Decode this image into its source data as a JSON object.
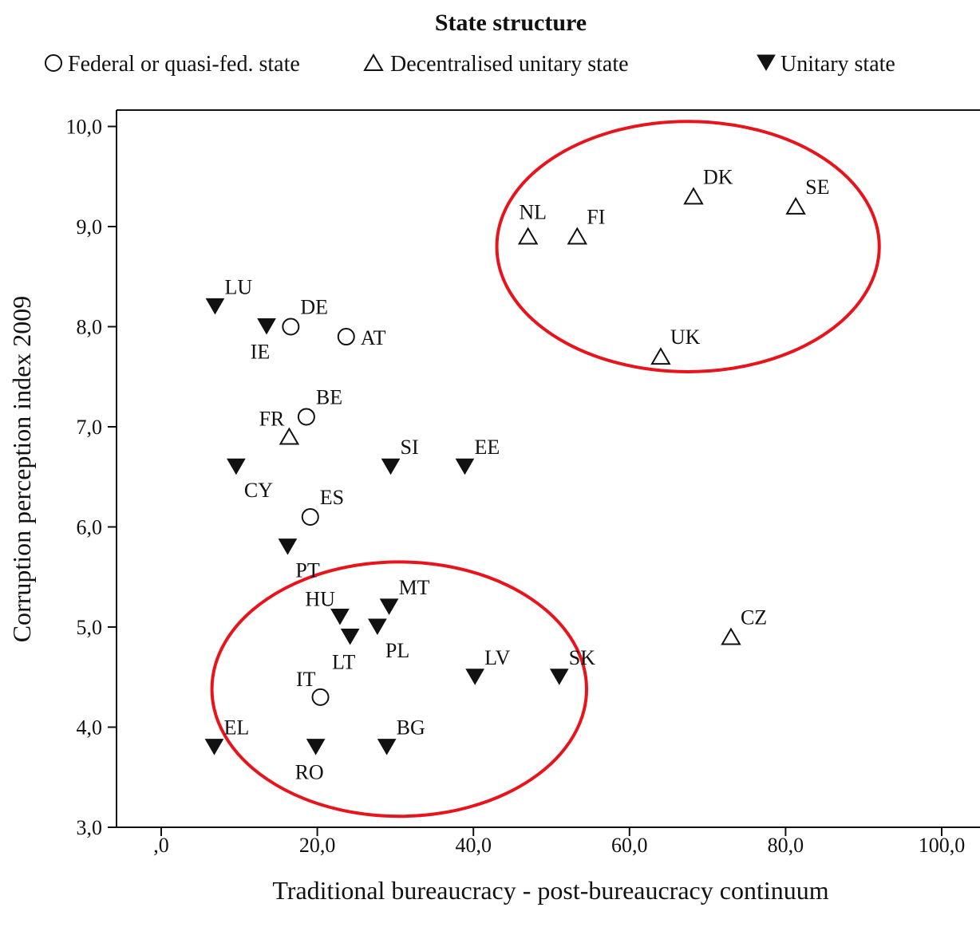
{
  "chart_data": {
    "type": "scatter",
    "title": "State structure",
    "xlabel": "Traditional bureaucracy - post-bureaucracy continuum",
    "ylabel": "Corruption perception index 2009",
    "xlim": [
      -5,
      105
    ],
    "ylim": [
      3,
      10
    ],
    "x_ticks": [
      0,
      20,
      40,
      60,
      80,
      100
    ],
    "x_tick_labels": [
      ",0",
      "20,0",
      "40,0",
      "60,0",
      "80,0",
      "100,0"
    ],
    "y_ticks": [
      3,
      4,
      5,
      6,
      7,
      8,
      9,
      10
    ],
    "y_tick_labels": [
      "3,0",
      "4,0",
      "5,0",
      "6,0",
      "7,0",
      "8,0",
      "9,0",
      "10,0"
    ],
    "grid": false,
    "legend_position": "top",
    "legend": [
      {
        "key": "federal",
        "label": "Federal or quasi-fed. state",
        "marker": "circle-open"
      },
      {
        "key": "decentralised",
        "label": "Decentralised unitary state",
        "marker": "triangle-open"
      },
      {
        "key": "unitary",
        "label": "Unitary state",
        "marker": "triangle-down-filled"
      }
    ],
    "points": [
      {
        "label": "DK",
        "x": 68.2,
        "y": 9.3,
        "group": "decentralised",
        "label_side": "above-right"
      },
      {
        "label": "SE",
        "x": 81.3,
        "y": 9.2,
        "group": "decentralised",
        "label_side": "above-right"
      },
      {
        "label": "NL",
        "x": 47.0,
        "y": 8.9,
        "group": "decentralised",
        "label_side": "above"
      },
      {
        "label": "FI",
        "x": 53.3,
        "y": 8.9,
        "group": "decentralised",
        "label_side": "above-right"
      },
      {
        "label": "UK",
        "x": 64.0,
        "y": 7.7,
        "group": "decentralised",
        "label_side": "above-right"
      },
      {
        "label": "FR",
        "x": 16.4,
        "y": 6.9,
        "group": "decentralised",
        "label_side": "above-left"
      },
      {
        "label": "CZ",
        "x": 73.0,
        "y": 4.9,
        "group": "decentralised",
        "label_side": "above-right"
      },
      {
        "label": "DE",
        "x": 16.6,
        "y": 8.0,
        "group": "federal",
        "label_side": "above-right"
      },
      {
        "label": "AT",
        "x": 23.7,
        "y": 7.9,
        "group": "federal",
        "label_side": "right"
      },
      {
        "label": "BE",
        "x": 18.6,
        "y": 7.1,
        "group": "federal",
        "label_side": "above-right"
      },
      {
        "label": "ES",
        "x": 19.1,
        "y": 6.1,
        "group": "federal",
        "label_side": "above-right"
      },
      {
        "label": "IT",
        "x": 20.4,
        "y": 4.3,
        "group": "federal",
        "label_side": "above-left"
      },
      {
        "label": "LU",
        "x": 6.9,
        "y": 8.2,
        "group": "unitary",
        "label_side": "above-right"
      },
      {
        "label": "IE",
        "x": 13.5,
        "y": 8.0,
        "group": "unitary",
        "label_side": "below"
      },
      {
        "label": "CY",
        "x": 9.6,
        "y": 6.6,
        "group": "unitary",
        "label_side": "below-right"
      },
      {
        "label": "SI",
        "x": 29.4,
        "y": 6.6,
        "group": "unitary",
        "label_side": "above-right"
      },
      {
        "label": "EE",
        "x": 38.9,
        "y": 6.6,
        "group": "unitary",
        "label_side": "above-right"
      },
      {
        "label": "PT",
        "x": 16.2,
        "y": 5.8,
        "group": "unitary",
        "label_side": "below-right"
      },
      {
        "label": "MT",
        "x": 29.2,
        "y": 5.2,
        "group": "unitary",
        "label_side": "above-right"
      },
      {
        "label": "HU",
        "x": 22.9,
        "y": 5.1,
        "group": "unitary",
        "label_side": "above-left"
      },
      {
        "label": "PL",
        "x": 27.7,
        "y": 5.0,
        "group": "unitary",
        "label_side": "below-right"
      },
      {
        "label": "LT",
        "x": 24.2,
        "y": 4.9,
        "group": "unitary",
        "label_side": "below"
      },
      {
        "label": "LV",
        "x": 40.2,
        "y": 4.5,
        "group": "unitary",
        "label_side": "above-right"
      },
      {
        "label": "SK",
        "x": 51.0,
        "y": 4.5,
        "group": "unitary",
        "label_side": "above-right"
      },
      {
        "label": "EL",
        "x": 6.8,
        "y": 3.8,
        "group": "unitary",
        "label_side": "above-right"
      },
      {
        "label": "RO",
        "x": 19.8,
        "y": 3.8,
        "group": "unitary",
        "label_side": "below"
      },
      {
        "label": "BG",
        "x": 28.9,
        "y": 3.8,
        "group": "unitary",
        "label_side": "above-right"
      }
    ],
    "annotations": [
      {
        "type": "ellipse",
        "color": "#e8141c",
        "cx": 67.5,
        "cy": 8.8,
        "rx_data": 24.5,
        "ry_data": 1.25
      },
      {
        "type": "ellipse",
        "color": "#e8141c",
        "cx": 30.5,
        "cy": 4.38,
        "rx_data": 24.0,
        "ry_data": 1.27
      }
    ]
  }
}
